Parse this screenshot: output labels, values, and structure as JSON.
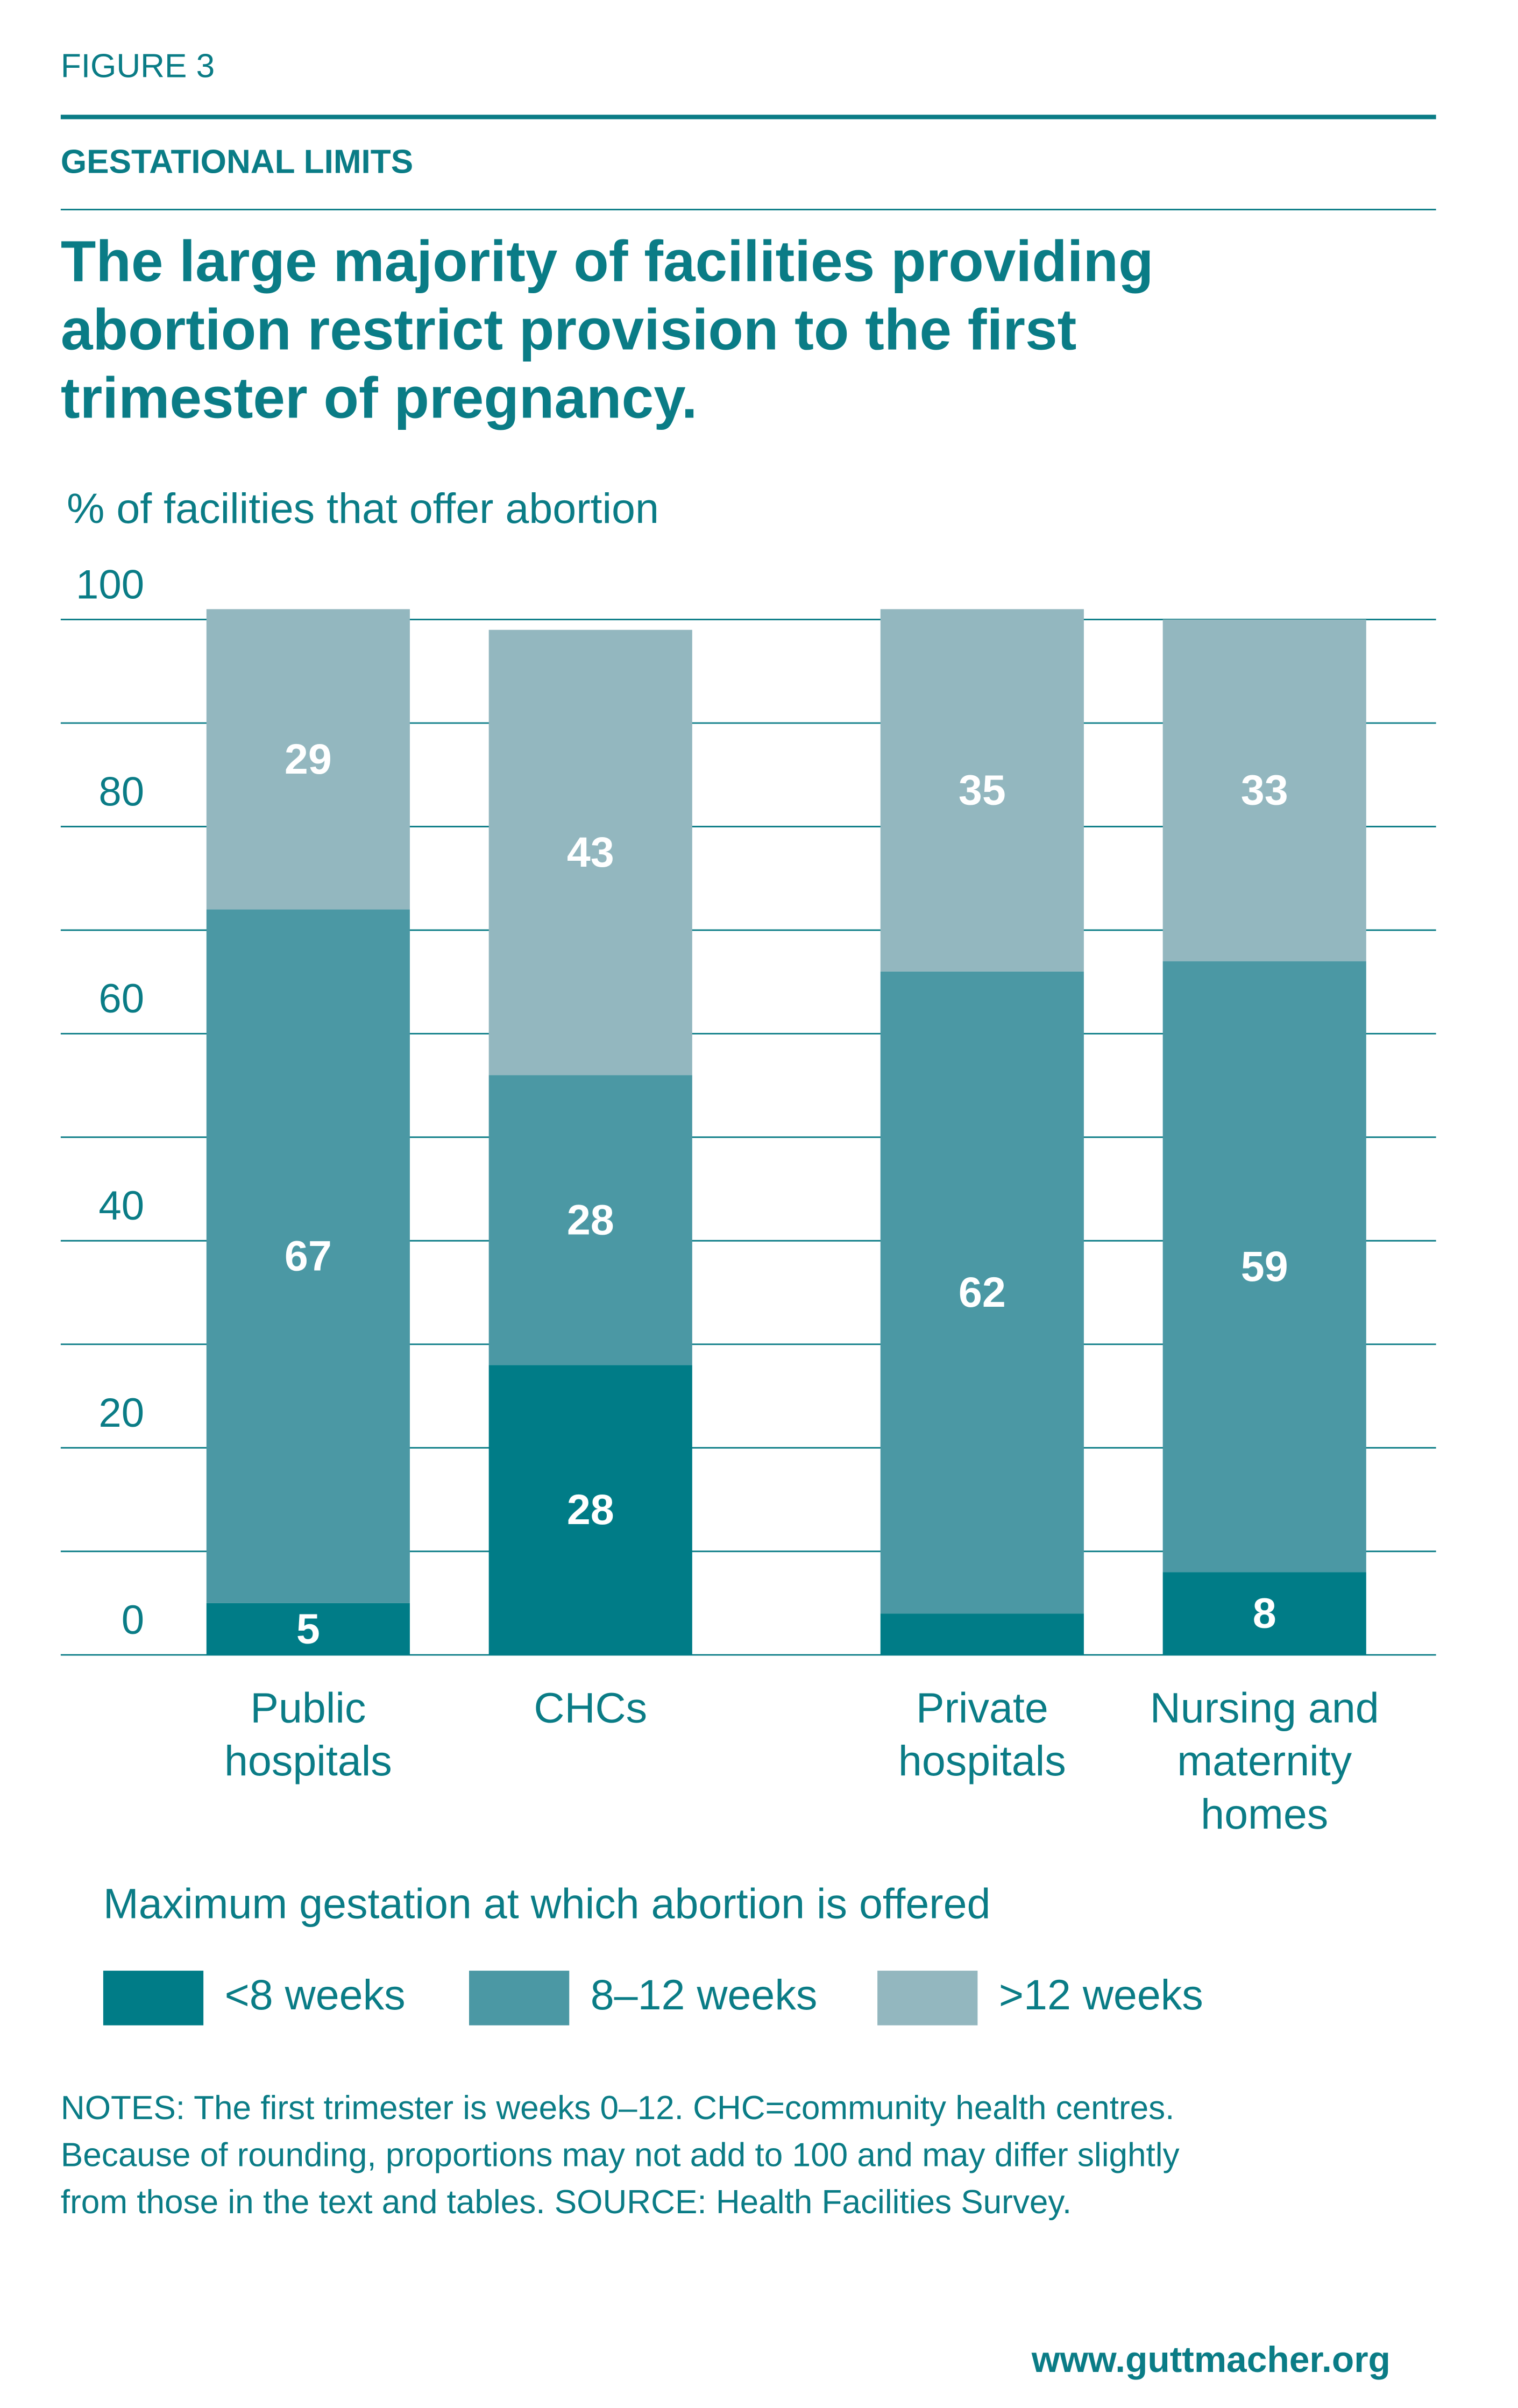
{
  "chart_data": {
    "type": "stacked_bar",
    "figure_label": "FIGURE 3",
    "section": "GESTATIONAL LIMITS",
    "title": [
      "The large majority of facilities providing",
      "abortion restrict provision to the first",
      "trimester of pregnancy."
    ],
    "y_label": "% of facilities that offer abortion",
    "categories": [
      [
        "Public",
        "hospitals"
      ],
      [
        "CHCs"
      ],
      [
        "Private",
        "hospitals"
      ],
      [
        "Nursing and",
        "maternity",
        "homes"
      ]
    ],
    "series": [
      {
        "name": "<8 weeks",
        "color": "#007c87",
        "values": [
          5,
          28,
          4,
          8
        ],
        "value_labels": [
          5,
          28,
          null,
          8
        ]
      },
      {
        "name": "8–12 weeks",
        "color": "#4b98a4",
        "values": [
          67,
          28,
          62,
          59
        ]
      },
      {
        "name": ">12 weeks",
        "color": "#93b7bf",
        "values": [
          29,
          43,
          35,
          33
        ]
      }
    ],
    "ylim": [
      0,
      100
    ],
    "yticks": [
      0,
      20,
      40,
      60,
      80,
      100
    ],
    "minor_yticks": [
      10,
      30,
      50,
      70,
      90
    ],
    "grid": true,
    "legend_title": "Maximum gestation at which abortion is offered",
    "notes": [
      "NOTES: The first trimester is weeks 0–12. CHC=community health centres.",
      "Because of rounding, proportions may not add to 100 and may differ slightly",
      "from those in the text and tables. SOURCE: Health Facilities Survey."
    ],
    "source_url": "www.guttmacher.org"
  }
}
